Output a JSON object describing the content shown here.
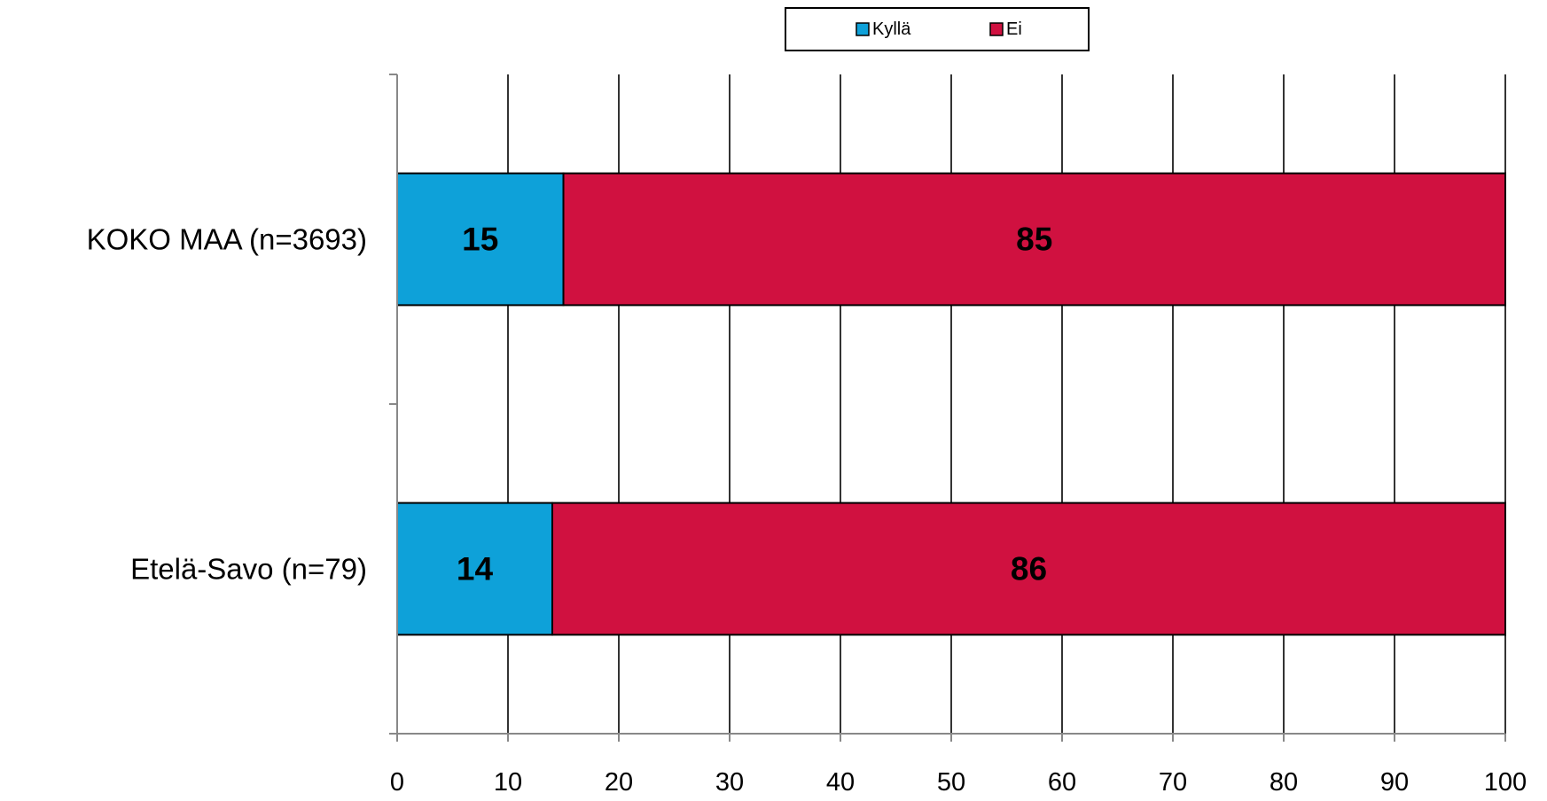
{
  "chart_data": {
    "type": "bar",
    "orientation": "horizontal",
    "stacked": true,
    "title": "",
    "xlabel": "",
    "ylabel": "",
    "categories": [
      "KOKO MAA (n=3693)",
      "Etelä-Savo (n=79)"
    ],
    "series": [
      {
        "name": "Kyllä",
        "color": "#0ea1d9",
        "values": [
          15,
          14
        ]
      },
      {
        "name": "Ei",
        "color": "#d01140",
        "values": [
          85,
          86
        ]
      }
    ],
    "xlim": [
      0,
      100
    ],
    "xticks": [
      0,
      10,
      20,
      30,
      40,
      50,
      60,
      70,
      80,
      90,
      100
    ],
    "grid": "vertical",
    "legend": "top-center",
    "data_labels": true
  }
}
